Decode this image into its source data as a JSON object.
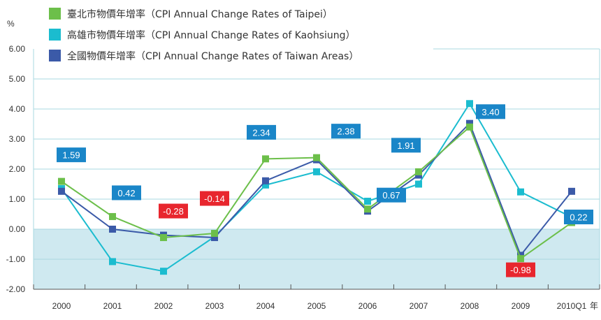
{
  "chart_data": {
    "type": "line",
    "y_unit": "%",
    "x_unit": "年",
    "categories": [
      "2000",
      "2001",
      "2002",
      "2003",
      "2004",
      "2005",
      "2006",
      "2007",
      "2008",
      "2009",
      "2010Q1"
    ],
    "y_ticks": [
      "6.00",
      "5.00",
      "4.00",
      "3.00",
      "2.00",
      "1.00",
      "0.00",
      "-1.00",
      "-2.00"
    ],
    "ylim": [
      -2,
      6
    ],
    "series": [
      {
        "name": "臺北市物價年增率（CPI Annual Change Rates of Taipei）",
        "color": "#6cbf4a",
        "values": [
          1.59,
          0.42,
          -0.28,
          -0.14,
          2.34,
          2.38,
          0.67,
          1.91,
          3.4,
          -0.98,
          0.22
        ]
      },
      {
        "name": "高雄市物價年增率（CPI Annual Change Rates of Kaohsiung）",
        "color": "#1bbccf",
        "values": [
          1.35,
          -1.08,
          -1.4,
          -0.25,
          1.47,
          1.91,
          0.93,
          1.5,
          4.18,
          1.24,
          0.4
        ]
      },
      {
        "name": "全國物價年增率（CPI Annual Change Rates of Taiwan Areas）",
        "color": "#3b5aa8",
        "values": [
          1.26,
          0.0,
          -0.2,
          -0.28,
          1.61,
          2.31,
          0.6,
          1.8,
          3.52,
          -0.87,
          1.26
        ]
      }
    ],
    "callouts": [
      {
        "label": "1.59",
        "index": 0,
        "style": "positive"
      },
      {
        "label": "0.42",
        "index": 1,
        "style": "positive"
      },
      {
        "label": "-0.28",
        "index": 2,
        "style": "negative"
      },
      {
        "label": "-0.14",
        "index": 3,
        "style": "negative"
      },
      {
        "label": "2.34",
        "index": 4,
        "style": "positive"
      },
      {
        "label": "2.38",
        "index": 5,
        "style": "positive"
      },
      {
        "label": "0.67",
        "index": 6,
        "style": "positive"
      },
      {
        "label": "1.91",
        "index": 7,
        "style": "positive"
      },
      {
        "label": "3.40",
        "index": 8,
        "style": "positive"
      },
      {
        "label": "-0.98",
        "index": 9,
        "style": "negative"
      },
      {
        "label": "0.22",
        "index": 10,
        "style": "positive"
      }
    ],
    "colors": {
      "positive_callout": "#1a86c8",
      "negative_callout": "#e8262e",
      "negative_band": "#cfe9f0",
      "grid": "#a8d8e0"
    },
    "grid": true,
    "legend_position": "top-left"
  }
}
